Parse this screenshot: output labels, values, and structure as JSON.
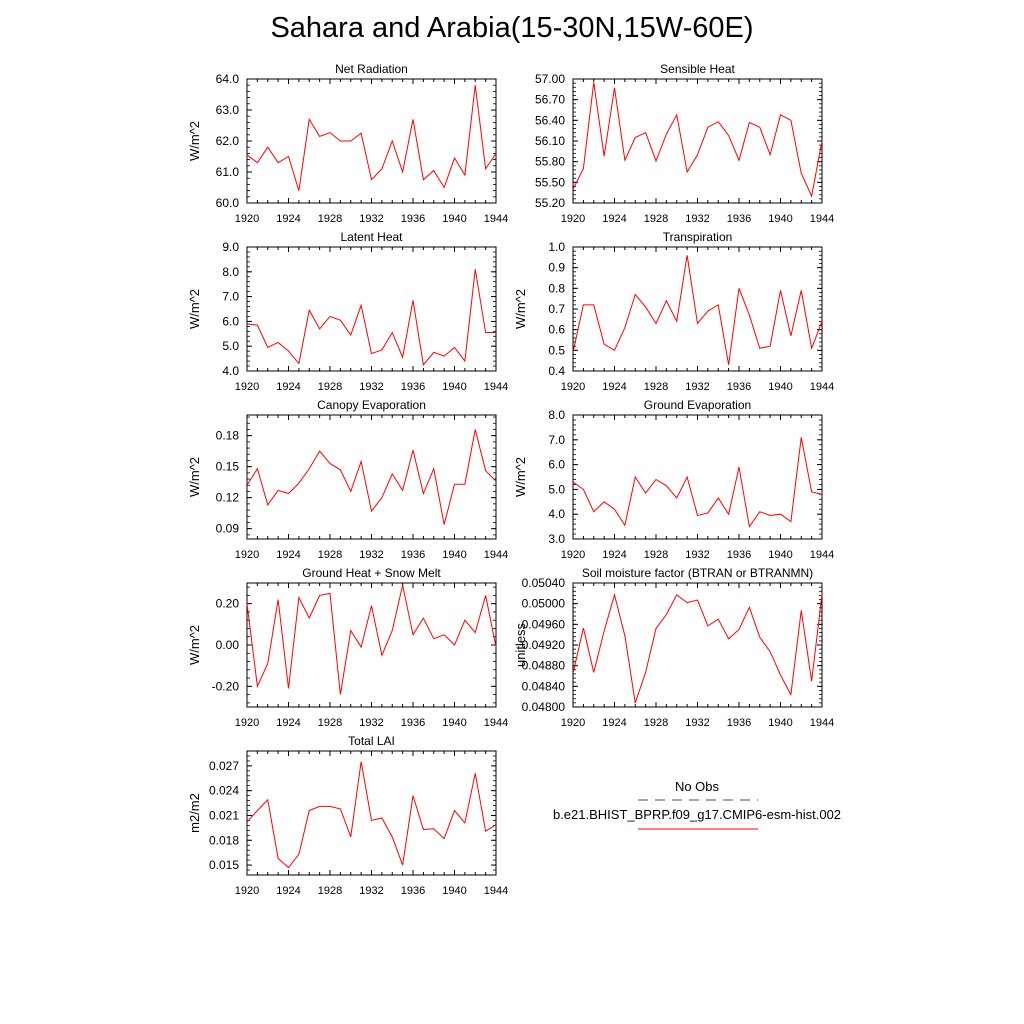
{
  "title": "Sahara and Arabia(15-30N,15W-60E)",
  "line_color": "#ff0000",
  "obs_line_color": "#4a4a7a",
  "legend": {
    "obs_label": "No Obs",
    "model_label": "b.e21.BHIST_BPRP.f09_g17.CMIP6-esm-hist.002"
  },
  "chart_data": [
    {
      "type": "line",
      "title": "Net Radiation",
      "ylabel": "W/m^2",
      "xlim": [
        1920,
        1944
      ],
      "ylim": [
        60.0,
        64.0
      ],
      "xticks": [
        "1920",
        "1924",
        "1928",
        "1932",
        "1936",
        "1940",
        "1944"
      ],
      "yticks": [
        "60.0",
        "61.0",
        "62.0",
        "63.0",
        "64.0"
      ],
      "x": [
        1920,
        1921,
        1922,
        1923,
        1924,
        1925,
        1926,
        1927,
        1928,
        1929,
        1930,
        1931,
        1932,
        1933,
        1934,
        1935,
        1936,
        1937,
        1938,
        1939,
        1940,
        1941,
        1942,
        1943,
        1944
      ],
      "series": [
        {
          "values": [
            61.55,
            61.3,
            61.8,
            61.3,
            61.5,
            60.4,
            62.7,
            62.15,
            62.27,
            62.0,
            62.0,
            62.25,
            60.75,
            61.1,
            62.0,
            61.0,
            62.7,
            60.75,
            61.05,
            60.5,
            61.45,
            60.9,
            63.8,
            61.1,
            61.6
          ]
        }
      ]
    },
    {
      "type": "line",
      "title": "Sensible Heat",
      "ylabel": "",
      "xlim": [
        1920,
        1944
      ],
      "ylim": [
        55.2,
        57.0
      ],
      "xticks": [
        "1920",
        "1924",
        "1928",
        "1932",
        "1936",
        "1940",
        "1944"
      ],
      "yticks": [
        "55.20",
        "55.50",
        "55.80",
        "56.10",
        "56.40",
        "56.70",
        "57.00"
      ],
      "x": [
        1920,
        1921,
        1922,
        1923,
        1924,
        1925,
        1926,
        1927,
        1928,
        1929,
        1930,
        1931,
        1932,
        1933,
        1934,
        1935,
        1936,
        1937,
        1938,
        1939,
        1940,
        1941,
        1942,
        1943,
        1944
      ],
      "series": [
        {
          "values": [
            55.4,
            55.7,
            56.95,
            55.88,
            56.87,
            55.82,
            56.15,
            56.22,
            55.81,
            56.2,
            56.48,
            55.65,
            55.9,
            56.3,
            56.38,
            56.18,
            55.82,
            56.37,
            56.3,
            55.9,
            56.48,
            56.4,
            55.63,
            55.3,
            56.1
          ]
        }
      ]
    },
    {
      "type": "line",
      "title": "Latent Heat",
      "ylabel": "W/m^2",
      "xlim": [
        1920,
        1944
      ],
      "ylim": [
        4.0,
        9.0
      ],
      "xticks": [
        "1920",
        "1924",
        "1928",
        "1932",
        "1936",
        "1940",
        "1944"
      ],
      "yticks": [
        "4.0",
        "5.0",
        "6.0",
        "7.0",
        "8.0",
        "9.0"
      ],
      "x": [
        1920,
        1921,
        1922,
        1923,
        1924,
        1925,
        1926,
        1927,
        1928,
        1929,
        1930,
        1931,
        1932,
        1933,
        1934,
        1935,
        1936,
        1937,
        1938,
        1939,
        1940,
        1941,
        1942,
        1943,
        1944
      ],
      "series": [
        {
          "values": [
            5.9,
            5.85,
            4.95,
            5.15,
            4.8,
            4.3,
            6.45,
            5.7,
            6.2,
            6.05,
            5.45,
            6.65,
            4.7,
            4.85,
            5.55,
            4.55,
            6.85,
            4.25,
            4.75,
            4.6,
            4.95,
            4.4,
            8.1,
            5.55,
            5.55
          ]
        }
      ]
    },
    {
      "type": "line",
      "title": "Transpiration",
      "ylabel": "W/m^2",
      "xlim": [
        1920,
        1944
      ],
      "ylim": [
        0.4,
        1.0
      ],
      "xticks": [
        "1920",
        "1924",
        "1928",
        "1932",
        "1936",
        "1940",
        "1944"
      ],
      "yticks": [
        "0.4",
        "0.5",
        "0.6",
        "0.7",
        "0.8",
        "0.9",
        "1.0"
      ],
      "x": [
        1920,
        1921,
        1922,
        1923,
        1924,
        1925,
        1926,
        1927,
        1928,
        1929,
        1930,
        1931,
        1932,
        1933,
        1934,
        1935,
        1936,
        1937,
        1938,
        1939,
        1940,
        1941,
        1942,
        1943,
        1944
      ],
      "series": [
        {
          "values": [
            0.49,
            0.72,
            0.72,
            0.53,
            0.5,
            0.61,
            0.77,
            0.71,
            0.63,
            0.74,
            0.64,
            0.96,
            0.63,
            0.69,
            0.72,
            0.43,
            0.8,
            0.67,
            0.51,
            0.52,
            0.79,
            0.57,
            0.79,
            0.51,
            0.64
          ]
        }
      ]
    },
    {
      "type": "line",
      "title": "Canopy Evaporation",
      "ylabel": "W/m^2",
      "xlim": [
        1920,
        1944
      ],
      "ylim": [
        0.08,
        0.2
      ],
      "xticks": [
        "1920",
        "1924",
        "1928",
        "1932",
        "1936",
        "1940",
        "1944"
      ],
      "yticks": [
        "0.09",
        "0.12",
        "0.15",
        "0.18"
      ],
      "x": [
        1920,
        1921,
        1922,
        1923,
        1924,
        1925,
        1926,
        1927,
        1928,
        1929,
        1930,
        1931,
        1932,
        1933,
        1934,
        1935,
        1936,
        1937,
        1938,
        1939,
        1940,
        1941,
        1942,
        1943,
        1944
      ],
      "series": [
        {
          "values": [
            0.132,
            0.148,
            0.113,
            0.127,
            0.124,
            0.134,
            0.148,
            0.165,
            0.153,
            0.147,
            0.126,
            0.155,
            0.107,
            0.12,
            0.143,
            0.127,
            0.166,
            0.124,
            0.148,
            0.094,
            0.133,
            0.133,
            0.186,
            0.146,
            0.136
          ]
        }
      ]
    },
    {
      "type": "line",
      "title": "Ground Evaporation",
      "ylabel": "W/m^2",
      "xlim": [
        1920,
        1944
      ],
      "ylim": [
        3.0,
        8.0
      ],
      "xticks": [
        "1920",
        "1924",
        "1928",
        "1932",
        "1936",
        "1940",
        "1944"
      ],
      "yticks": [
        "3.0",
        "4.0",
        "5.0",
        "6.0",
        "7.0",
        "8.0"
      ],
      "x": [
        1920,
        1921,
        1922,
        1923,
        1924,
        1925,
        1926,
        1927,
        1928,
        1929,
        1930,
        1931,
        1932,
        1933,
        1934,
        1935,
        1936,
        1937,
        1938,
        1939,
        1940,
        1941,
        1942,
        1943,
        1944
      ],
      "series": [
        {
          "values": [
            5.3,
            5.0,
            4.1,
            4.5,
            4.2,
            3.55,
            5.5,
            4.85,
            5.4,
            5.15,
            4.65,
            5.5,
            3.95,
            4.05,
            4.65,
            4.0,
            5.9,
            3.5,
            4.1,
            3.95,
            4.0,
            3.7,
            7.1,
            4.9,
            4.8
          ]
        }
      ]
    },
    {
      "type": "line",
      "title": "Ground Heat + Snow Melt",
      "ylabel": "W/m^2",
      "xlim": [
        1920,
        1944
      ],
      "ylim": [
        -0.3,
        0.3
      ],
      "xticks": [
        "1920",
        "1924",
        "1928",
        "1932",
        "1936",
        "1940",
        "1944"
      ],
      "yticks": [
        "-0.20",
        "0.00",
        "0.20"
      ],
      "x": [
        1920,
        1921,
        1922,
        1923,
        1924,
        1925,
        1926,
        1927,
        1928,
        1929,
        1930,
        1931,
        1932,
        1933,
        1934,
        1935,
        1936,
        1937,
        1938,
        1939,
        1940,
        1941,
        1942,
        1943,
        1944
      ],
      "series": [
        {
          "values": [
            0.2,
            -0.2,
            -0.09,
            0.22,
            -0.21,
            0.23,
            0.13,
            0.24,
            0.25,
            -0.24,
            0.07,
            -0.01,
            0.19,
            -0.05,
            0.07,
            0.29,
            0.05,
            0.13,
            0.03,
            0.05,
            0.0,
            0.12,
            0.06,
            0.24,
            -0.01
          ]
        }
      ]
    },
    {
      "type": "line",
      "title": "Soil moisture factor (BTRAN or BTRANMN)",
      "ylabel": "unitless",
      "xlim": [
        1920,
        1944
      ],
      "ylim": [
        0.048,
        0.0504
      ],
      "xticks": [
        "1920",
        "1924",
        "1928",
        "1932",
        "1936",
        "1940",
        "1944"
      ],
      "yticks": [
        "0.04800",
        "0.04840",
        "0.04880",
        "0.04920",
        "0.04960",
        "0.05000",
        "0.05040"
      ],
      "x": [
        1920,
        1921,
        1922,
        1923,
        1924,
        1925,
        1926,
        1927,
        1928,
        1929,
        1930,
        1931,
        1932,
        1933,
        1934,
        1935,
        1936,
        1937,
        1938,
        1939,
        1940,
        1941,
        1942,
        1943,
        1944
      ],
      "series": [
        {
          "values": [
            0.04865,
            0.04953,
            0.04867,
            0.04947,
            0.05017,
            0.04938,
            0.04808,
            0.04867,
            0.04952,
            0.04979,
            0.05017,
            0.05002,
            0.05007,
            0.04957,
            0.0497,
            0.04932,
            0.0495,
            0.04993,
            0.04935,
            0.04907,
            0.04862,
            0.04824,
            0.04987,
            0.0485,
            0.05018
          ]
        }
      ]
    },
    {
      "type": "line",
      "title": "Total LAI",
      "ylabel": "m2/m2",
      "xlim": [
        1920,
        1944
      ],
      "ylim": [
        0.0138,
        0.0288
      ],
      "xticks": [
        "1920",
        "1924",
        "1928",
        "1932",
        "1936",
        "1940",
        "1944"
      ],
      "yticks": [
        "0.015",
        "0.018",
        "0.021",
        "0.024",
        "0.027"
      ],
      "x": [
        1920,
        1921,
        1922,
        1923,
        1924,
        1925,
        1926,
        1927,
        1928,
        1929,
        1930,
        1931,
        1932,
        1933,
        1934,
        1935,
        1936,
        1937,
        1938,
        1939,
        1940,
        1941,
        1942,
        1943,
        1944
      ],
      "series": [
        {
          "values": [
            0.0202,
            0.0216,
            0.0229,
            0.0158,
            0.0147,
            0.0163,
            0.0216,
            0.0221,
            0.0221,
            0.0218,
            0.0184,
            0.0275,
            0.0204,
            0.0207,
            0.0184,
            0.015,
            0.0234,
            0.0193,
            0.0194,
            0.0182,
            0.0216,
            0.0201,
            0.0261,
            0.0191,
            0.0199
          ]
        }
      ]
    }
  ]
}
